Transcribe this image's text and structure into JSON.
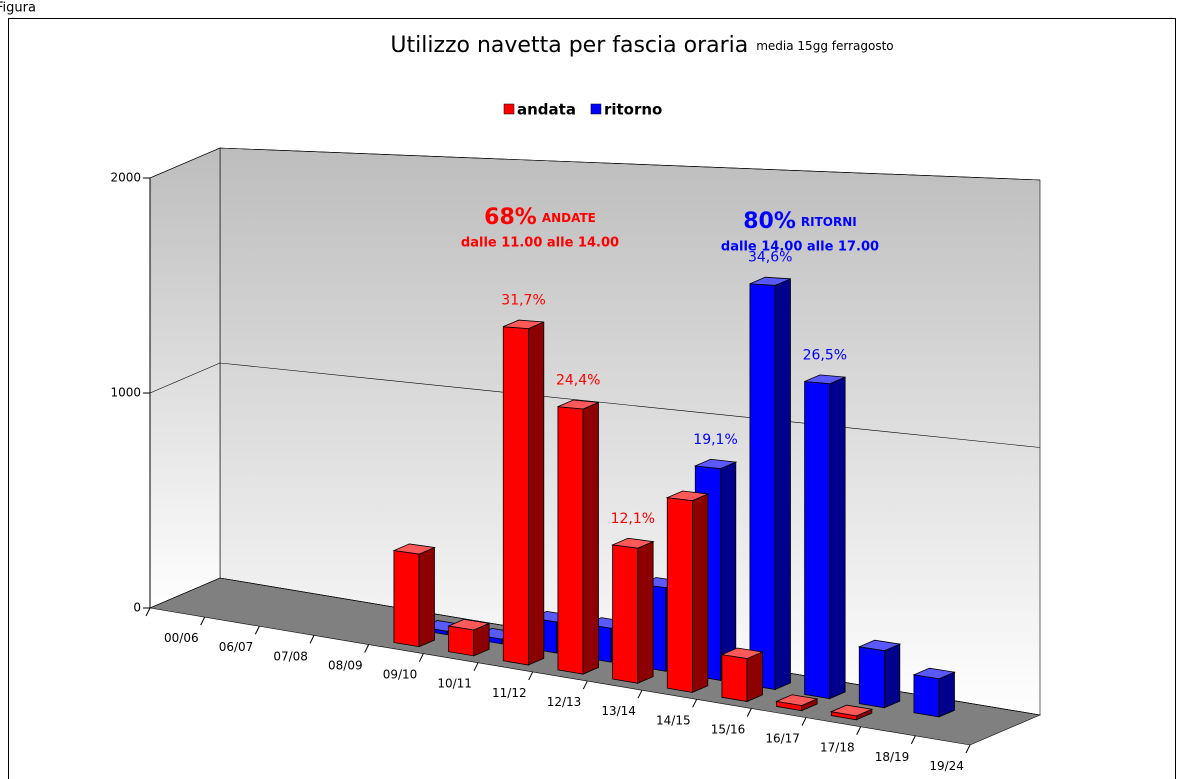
{
  "figure_label": "Figura",
  "chart_data": {
    "type": "bar3d",
    "title": "Utilizzo navetta per fascia oraria",
    "subtitle": "media 15gg ferragosto",
    "categories": [
      "00/06",
      "06/07",
      "07/08",
      "08/09",
      "09/10",
      "10/11",
      "11/12",
      "12/13",
      "13/14",
      "14/15",
      "15/16",
      "16/17",
      "17/18",
      "18/19",
      "19/24"
    ],
    "series": [
      {
        "name": "andata",
        "color": "#ff0000",
        "values": [
          null,
          null,
          null,
          null,
          400,
          110,
          1410,
          1095,
          550,
          770,
          170,
          20,
          15,
          null,
          null
        ],
        "percent_labels": [
          null,
          null,
          null,
          null,
          null,
          null,
          "31,7%",
          "24,4%",
          "12,1%",
          null,
          null,
          null,
          null,
          null,
          null
        ]
      },
      {
        "name": "ritorno",
        "color": "#0000ff",
        "values": [
          null,
          null,
          null,
          null,
          15,
          20,
          130,
          140,
          340,
          850,
          1600,
          1230,
          220,
          145,
          null
        ],
        "percent_labels": [
          null,
          null,
          null,
          null,
          null,
          null,
          null,
          null,
          null,
          "19,1%",
          "34,6%",
          "26,5%",
          null,
          null,
          null
        ]
      }
    ],
    "ylim": [
      0,
      2000
    ],
    "yticks": [
      0,
      1000,
      2000
    ],
    "grid": true,
    "legend": "top",
    "annotations": [
      {
        "big": "68%",
        "small": "ANDATE",
        "line2": "dalle 11.00 alle 14.00",
        "color": "#ff0000"
      },
      {
        "big": "80%",
        "small": "RITORNI",
        "line2": "dalle 14.00 alle 17.00",
        "color": "#0000ff"
      }
    ]
  }
}
